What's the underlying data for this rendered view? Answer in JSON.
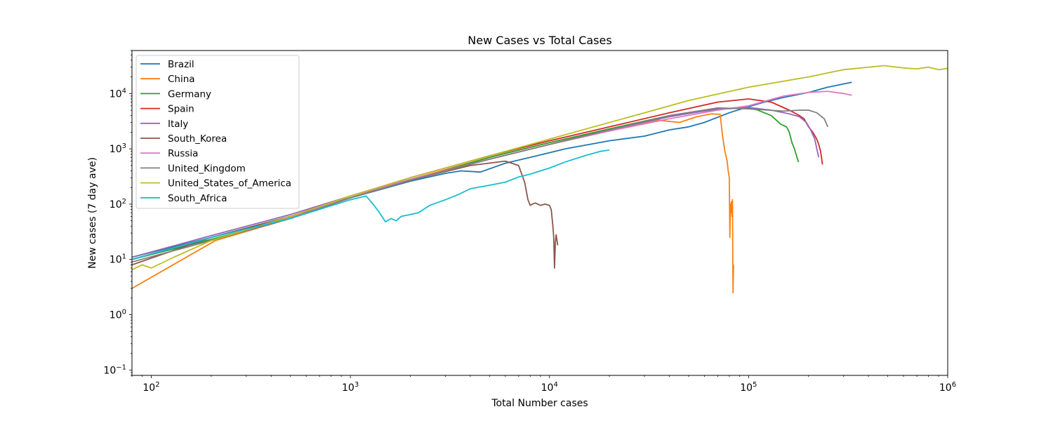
{
  "chart_data": {
    "type": "line",
    "title": "New Cases vs Total Cases",
    "xlabel": "Total Number cases",
    "ylabel": "New cases (7 day ave)",
    "xscale": "log",
    "yscale": "log",
    "xlim": [
      80,
      1000000
    ],
    "ylim": [
      0.08,
      60000
    ],
    "grid": false,
    "legend_position": "upper left",
    "x_ticks": [
      {
        "value": 100,
        "base": "10",
        "exp": "2"
      },
      {
        "value": 1000,
        "base": "10",
        "exp": "3"
      },
      {
        "value": 10000,
        "base": "10",
        "exp": "4"
      },
      {
        "value": 100000,
        "base": "10",
        "exp": "5"
      },
      {
        "value": 1000000,
        "base": "10",
        "exp": "6"
      }
    ],
    "y_ticks": [
      {
        "value": 0.1,
        "base": "10",
        "exp": "−1"
      },
      {
        "value": 1,
        "base": "10",
        "exp": "0"
      },
      {
        "value": 10,
        "base": "10",
        "exp": "1"
      },
      {
        "value": 100,
        "base": "10",
        "exp": "2"
      },
      {
        "value": 1000,
        "base": "10",
        "exp": "3"
      },
      {
        "value": 10000,
        "base": "10",
        "exp": "4"
      }
    ],
    "series": [
      {
        "name": "Brazil",
        "color": "#1f77b4",
        "x": [
          80,
          200,
          500,
          1000,
          2000,
          3000,
          3600,
          4500,
          6000,
          8000,
          12000,
          20000,
          30000,
          40000,
          50000,
          60000,
          80000,
          100000,
          120000,
          150000,
          200000,
          250000,
          330000
        ],
        "y": [
          11,
          25,
          60,
          130,
          260,
          360,
          400,
          380,
          550,
          700,
          1000,
          1400,
          1700,
          2200,
          2500,
          3000,
          4500,
          5800,
          7000,
          8500,
          10500,
          13000,
          16000
        ]
      },
      {
        "name": "China",
        "color": "#ff7f0e",
        "x": [
          80,
          210,
          500,
          1000,
          2000,
          5000,
          10000,
          20000,
          35000,
          45000,
          55000,
          65000,
          72000,
          74000,
          76000,
          78000,
          79000,
          80000,
          80500,
          81000,
          81500,
          82000,
          82500,
          83000,
          83500,
          84000
        ],
        "y": [
          3,
          22,
          55,
          130,
          280,
          700,
          1300,
          2200,
          3300,
          3000,
          3800,
          4300,
          4200,
          1700,
          900,
          600,
          400,
          300,
          25,
          100,
          70,
          110,
          60,
          120,
          2.5,
          8
        ]
      },
      {
        "name": "Germany",
        "color": "#2ca02c",
        "x": [
          80,
          200,
          500,
          1000,
          2000,
          5000,
          10000,
          20000,
          40000,
          70000,
          95000,
          110000,
          130000,
          145000,
          155000,
          160000,
          165000,
          170000,
          175000,
          178000
        ],
        "y": [
          10,
          23,
          55,
          130,
          270,
          700,
          1300,
          2300,
          4000,
          5200,
          5500,
          5100,
          4000,
          2800,
          2500,
          2000,
          1300,
          1000,
          700,
          580
        ]
      },
      {
        "name": "Spain",
        "color": "#d62728",
        "x": [
          80,
          200,
          500,
          1000,
          2000,
          5000,
          10000,
          20000,
          40000,
          70000,
          100000,
          130000,
          160000,
          180000,
          190000,
          200000,
          210000,
          220000,
          225000,
          230000,
          235000
        ],
        "y": [
          10,
          25,
          60,
          140,
          300,
          750,
          1400,
          2500,
          4500,
          7000,
          8000,
          7000,
          5000,
          4000,
          3500,
          2500,
          2000,
          1500,
          1200,
          900,
          520
        ]
      },
      {
        "name": "Italy",
        "color": "#9467bd",
        "x": [
          80,
          200,
          500,
          1000,
          2000,
          5000,
          10000,
          20000,
          40000,
          70000,
          100000,
          130000,
          160000,
          180000,
          195000,
          205000,
          215000,
          220000,
          225000
        ],
        "y": [
          11,
          27,
          65,
          140,
          280,
          650,
          1200,
          2200,
          3800,
          5300,
          5600,
          5000,
          4300,
          3800,
          3000,
          2200,
          1500,
          1000,
          700
        ]
      },
      {
        "name": "South_Korea",
        "color": "#8c564b",
        "x": [
          80,
          200,
          500,
          1000,
          2000,
          4000,
          6000,
          7000,
          7500,
          7800,
          8000,
          8200,
          8500,
          9000,
          9500,
          10000,
          10200,
          10400,
          10500,
          10600,
          10700,
          10800,
          11000
        ],
        "y": [
          8,
          25,
          60,
          130,
          270,
          500,
          600,
          500,
          250,
          120,
          95,
          100,
          105,
          95,
          100,
          95,
          80,
          40,
          25,
          7,
          20,
          28,
          18
        ]
      },
      {
        "name": "Russia",
        "color": "#e377c2",
        "x": [
          430,
          600,
          1000,
          2000,
          5000,
          10000,
          20000,
          40000,
          70000,
          100000,
          150000,
          200000,
          250000,
          300000,
          330000
        ],
        "y": [
          50,
          70,
          140,
          280,
          650,
          1200,
          2100,
          3500,
          5000,
          6000,
          9000,
          10500,
          11000,
          10000,
          9300
        ]
      },
      {
        "name": "United_Kingdom",
        "color": "#7f7f7f",
        "x": [
          80,
          200,
          500,
          1000,
          2000,
          5000,
          10000,
          20000,
          40000,
          70000,
          100000,
          150000,
          180000,
          200000,
          220000,
          240000,
          250000
        ],
        "y": [
          9,
          22,
          55,
          130,
          270,
          650,
          1200,
          2200,
          4000,
          5500,
          5300,
          4800,
          5000,
          5000,
          4500,
          3500,
          2500
        ]
      },
      {
        "name": "United_States_of_America",
        "color": "#bcbd22",
        "x": [
          80,
          90,
          100,
          130,
          200,
          500,
          1000,
          2000,
          5000,
          10000,
          30000,
          50000,
          100000,
          200000,
          300000,
          480000,
          600000,
          700000,
          800000,
          900000,
          1000000
        ],
        "y": [
          6.5,
          8,
          7,
          11,
          22,
          60,
          140,
          300,
          750,
          1500,
          4500,
          7500,
          13000,
          20000,
          27000,
          32000,
          29000,
          28000,
          30000,
          27000,
          28500
        ]
      },
      {
        "name": "South_Africa",
        "color": "#17becf",
        "x": [
          80,
          200,
          500,
          1000,
          1200,
          1300,
          1400,
          1500,
          1600,
          1700,
          1800,
          2000,
          2200,
          2500,
          3000,
          3500,
          4000,
          5000,
          6000,
          7000,
          8000,
          10000,
          12000,
          15000,
          18000,
          20000
        ],
        "y": [
          10,
          25,
          55,
          120,
          140,
          100,
          70,
          48,
          55,
          50,
          60,
          65,
          70,
          95,
          120,
          150,
          190,
          220,
          250,
          310,
          350,
          450,
          580,
          750,
          900,
          950
        ]
      }
    ]
  }
}
